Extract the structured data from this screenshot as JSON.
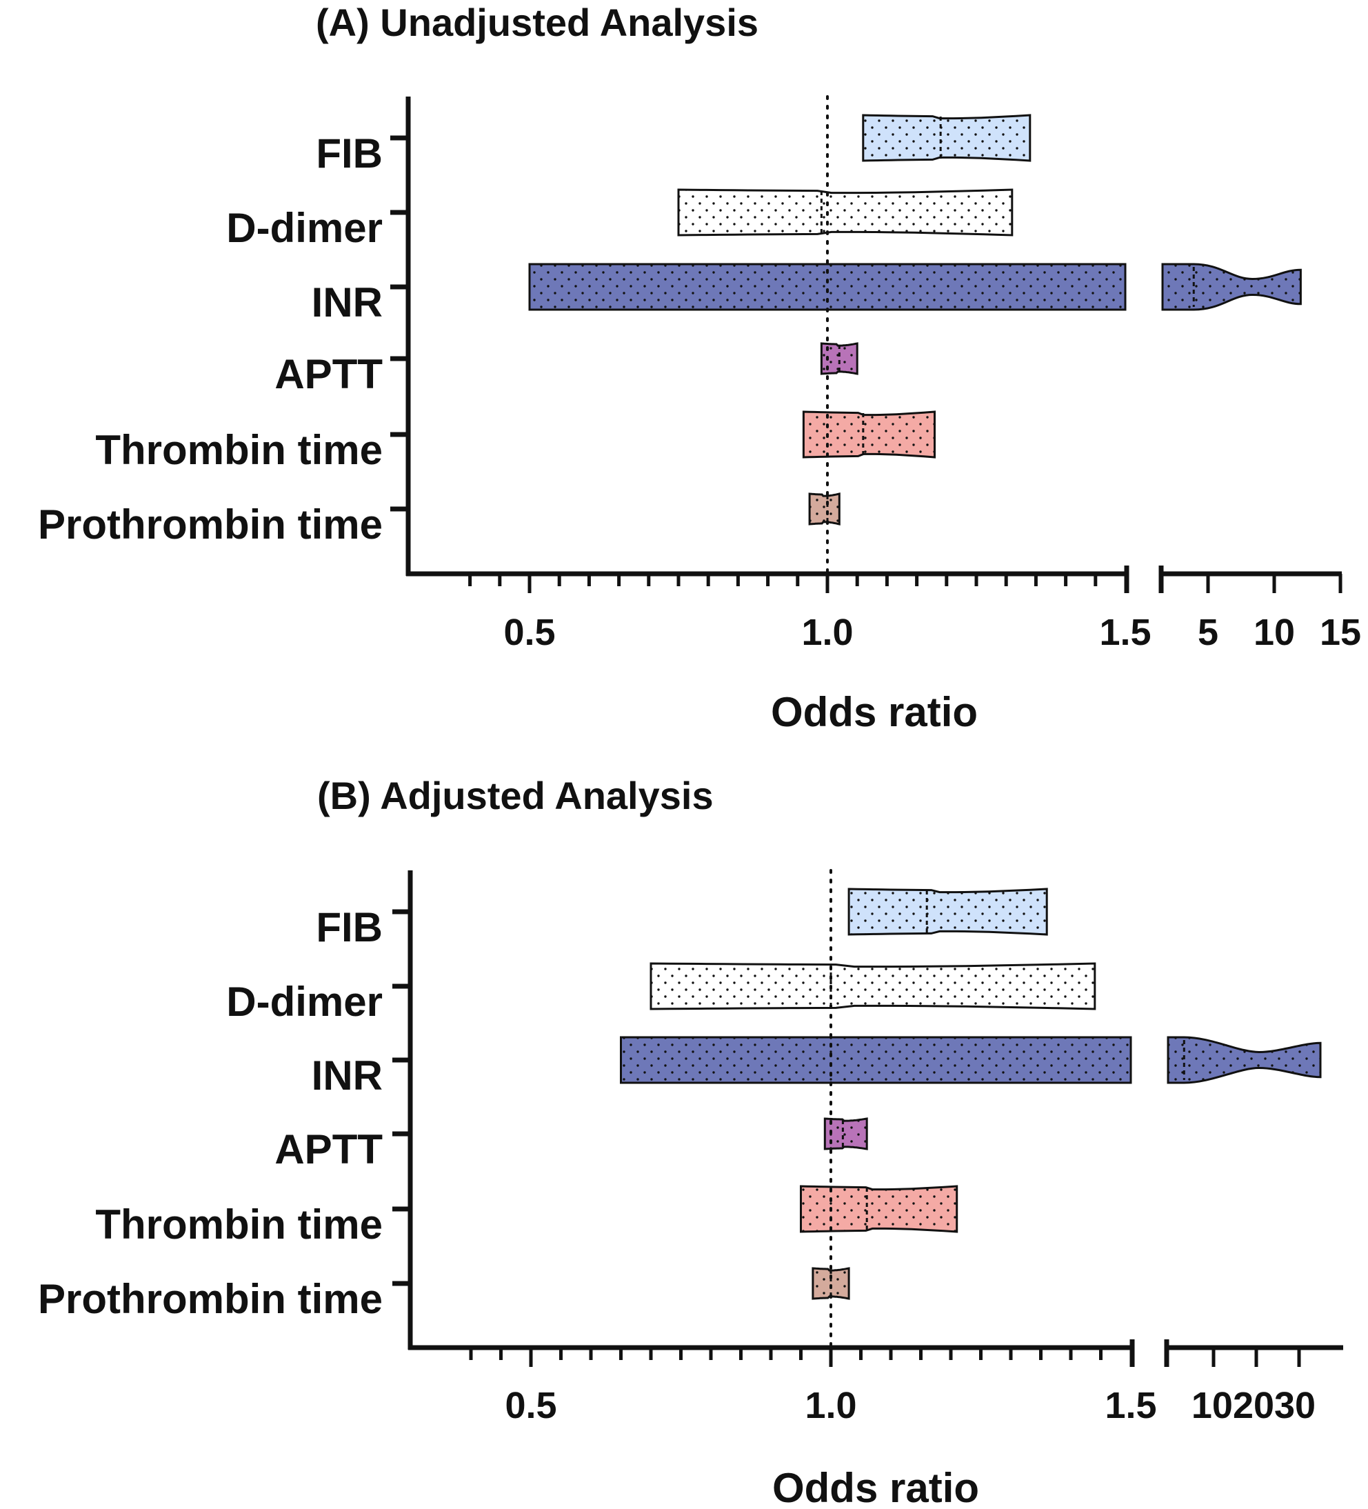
{
  "chart_data": [
    {
      "type": "violin",
      "title": "(A) Unadjusted Analysis",
      "xlabel": "Odds ratio",
      "reference_value": 1.0,
      "x_axis": {
        "segments": [
          {
            "range": [
              0.4,
              1.5
            ],
            "ticks": [
              0.5,
              1.0,
              1.5
            ]
          },
          {
            "range": [
              1.5,
              15
            ],
            "ticks": [
              5,
              10,
              15
            ]
          }
        ]
      },
      "tick_labels": [
        "0.5",
        "1.0",
        "1.5",
        "5",
        "10",
        "15"
      ],
      "categories": [
        "FIB",
        "D-dimer",
        "INR",
        "APTT",
        "Thrombin time",
        "Prothrombin time"
      ],
      "series": [
        {
          "category": "FIB",
          "lower": 1.06,
          "median": 1.19,
          "upper": 1.34,
          "color": "#cfe2fb"
        },
        {
          "category": "D-dimer",
          "lower": 0.75,
          "median": 0.99,
          "upper": 1.31,
          "color": "#ffffff"
        },
        {
          "category": "INR",
          "lower": 0.5,
          "median": 3.9,
          "upper": 12.0,
          "color": "#6e78b8"
        },
        {
          "category": "APTT",
          "lower": 0.99,
          "median": 1.02,
          "upper": 1.05,
          "color": "#b873b8"
        },
        {
          "category": "Thrombin time",
          "lower": 0.96,
          "median": 1.06,
          "upper": 1.18,
          "color": "#f4aaa5"
        },
        {
          "category": "Prothrombin time",
          "lower": 0.97,
          "median": 1.0,
          "upper": 1.02,
          "color": "#d4aa9c"
        }
      ]
    },
    {
      "type": "violin",
      "title": "(B) Adjusted Analysis",
      "xlabel": "Odds ratio",
      "reference_value": 1.0,
      "x_axis": {
        "segments": [
          {
            "range": [
              0.4,
              1.5
            ],
            "ticks": [
              0.5,
              1.0,
              1.5
            ]
          },
          {
            "range": [
              1.5,
              35
            ],
            "ticks": [
              10,
              20,
              30
            ]
          }
        ]
      },
      "tick_labels": [
        "0.5",
        "1.0",
        "1.5",
        "102030"
      ],
      "categories": [
        "FIB",
        "D-dimer",
        "INR",
        "APTT",
        "Thrombin time",
        "Prothrombin time"
      ],
      "series": [
        {
          "category": "FIB",
          "lower": 1.03,
          "median": 1.16,
          "upper": 1.36,
          "color": "#cfe2fb"
        },
        {
          "category": "D-dimer",
          "lower": 0.7,
          "median": 1.0,
          "upper": 1.44,
          "color": "#ffffff"
        },
        {
          "category": "INR",
          "lower": 0.65,
          "median": 4.5,
          "upper": 35,
          "color": "#6e78b8"
        },
        {
          "category": "APTT",
          "lower": 0.99,
          "median": 1.02,
          "upper": 1.06,
          "color": "#b873b8"
        },
        {
          "category": "Thrombin time",
          "lower": 0.95,
          "median": 1.06,
          "upper": 1.21,
          "color": "#f4aaa5"
        },
        {
          "category": "Prothrombin time",
          "lower": 0.97,
          "median": 1.0,
          "upper": 1.03,
          "color": "#d4aa9c"
        }
      ]
    }
  ]
}
